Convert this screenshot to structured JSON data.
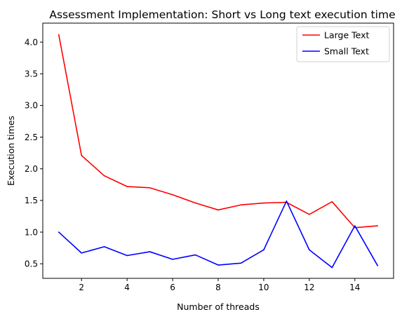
{
  "chart_data": {
    "type": "line",
    "title": "Assessment Implementation: Short vs Long text execution time",
    "xlabel": "Number of threads",
    "ylabel": "Execution times",
    "xlim": [
      0.3,
      15.7
    ],
    "ylim": [
      0.27,
      4.3
    ],
    "xticks": [
      2,
      4,
      6,
      8,
      10,
      12,
      14
    ],
    "yticks": [
      0.5,
      1.0,
      1.5,
      2.0,
      2.5,
      3.0,
      3.5,
      4.0
    ],
    "x": [
      1,
      2,
      3,
      4,
      5,
      6,
      7,
      8,
      9,
      10,
      11,
      12,
      13,
      14,
      15
    ],
    "series": [
      {
        "name": "Large Text",
        "color": "#ff0000",
        "values": [
          4.12,
          2.21,
          1.89,
          1.72,
          1.7,
          1.59,
          1.46,
          1.35,
          1.43,
          1.46,
          1.47,
          1.28,
          1.48,
          1.07,
          1.1
        ]
      },
      {
        "name": "Small Text",
        "color": "#0000ff",
        "values": [
          1.0,
          0.67,
          0.77,
          0.63,
          0.69,
          0.57,
          0.64,
          0.48,
          0.51,
          0.72,
          1.49,
          0.72,
          0.44,
          1.1,
          0.47
        ]
      }
    ],
    "grid": false,
    "legend": "top-right"
  }
}
